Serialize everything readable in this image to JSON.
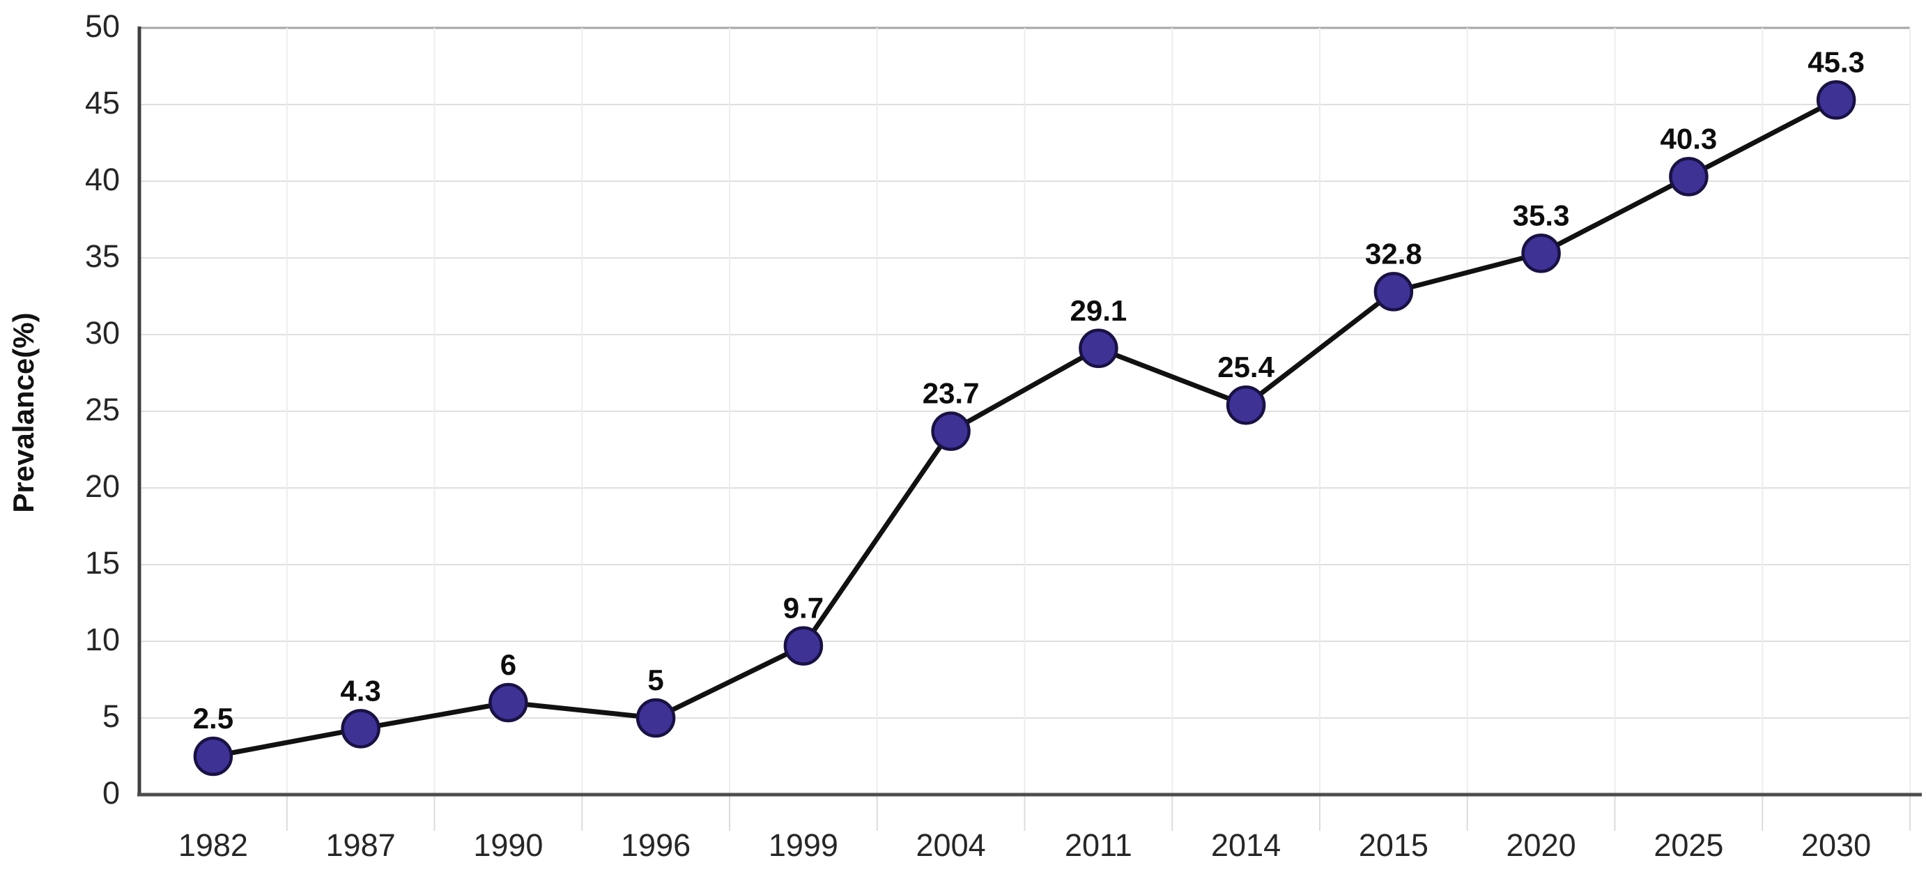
{
  "chart_data": {
    "type": "line",
    "title": "",
    "xlabel": "",
    "ylabel": "Prevalance(%)",
    "categories": [
      "1982",
      "1987",
      "1990",
      "1996",
      "1999",
      "2004",
      "2011",
      "2014",
      "2015",
      "2020",
      "2025",
      "2030"
    ],
    "series": [
      {
        "name": "Prevalance",
        "values": [
          2.5,
          4.3,
          6,
          5,
          9.7,
          23.7,
          29.1,
          25.4,
          32.8,
          35.3,
          40.3,
          45.3
        ],
        "point_labels": [
          "2.5",
          "4.3",
          "6",
          "5",
          "9.7",
          "23.7",
          "29.1",
          "25.4",
          "32.8",
          "35.3",
          "40.3",
          "45.3"
        ]
      }
    ],
    "ylim": [
      0,
      50
    ],
    "yticks": [
      0,
      5,
      10,
      15,
      20,
      25,
      30,
      35,
      40,
      45,
      50
    ],
    "ytick_labels": [
      "0",
      "5",
      "10",
      "15",
      "20",
      "25",
      "30",
      "35",
      "40",
      "45",
      "50"
    ],
    "grid": "horizontal-and-vertical-faint",
    "legend": "none",
    "colors": {
      "line": "#111111",
      "marker_fill": "#3e3295",
      "marker_stroke": "#191243",
      "grid_horizontal": "#dfdfdf",
      "grid_vertical": "#ededed",
      "axis_left": "#404040",
      "axis_bottom": "#4d4d4d",
      "plot_top_border": "#a6a6a6",
      "x_tick": "#dcdcdc",
      "label_text": "#0d0d0d",
      "tick_text": "#262626",
      "background": "#ffffff"
    }
  }
}
